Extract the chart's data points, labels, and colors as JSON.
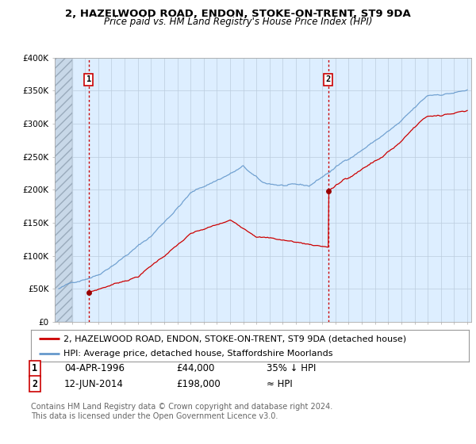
{
  "title": "2, HAZELWOOD ROAD, ENDON, STOKE-ON-TRENT, ST9 9DA",
  "subtitle": "Price paid vs. HM Land Registry's House Price Index (HPI)",
  "ylim": [
    0,
    400000
  ],
  "yticks": [
    0,
    50000,
    100000,
    150000,
    200000,
    250000,
    300000,
    350000,
    400000
  ],
  "ytick_labels": [
    "£0",
    "£50K",
    "£100K",
    "£150K",
    "£200K",
    "£250K",
    "£300K",
    "£350K",
    "£400K"
  ],
  "xlim_start": 1993.7,
  "xlim_end": 2025.3,
  "fig_bg_color": "#ffffff",
  "plot_bg_color": "#ddeeff",
  "hatch_bg_color": "#c8d8e8",
  "hpi_line_color": "#6699cc",
  "price_line_color": "#cc0000",
  "marker_color": "#990000",
  "grid_color": "#bbccdd",
  "purchase1_x": 1996.27,
  "purchase1_y": 44000,
  "purchase1_label": "1",
  "purchase2_x": 2014.45,
  "purchase2_y": 198000,
  "purchase2_label": "2",
  "legend_line1": "2, HAZELWOOD ROAD, ENDON, STOKE-ON-TRENT, ST9 9DA (detached house)",
  "legend_line2": "HPI: Average price, detached house, Staffordshire Moorlands",
  "title_fontsize": 9.5,
  "subtitle_fontsize": 8.5,
  "tick_fontsize": 7.5,
  "legend_fontsize": 8.0,
  "footer_fontsize": 8.5,
  "copyright_fontsize": 7.0
}
